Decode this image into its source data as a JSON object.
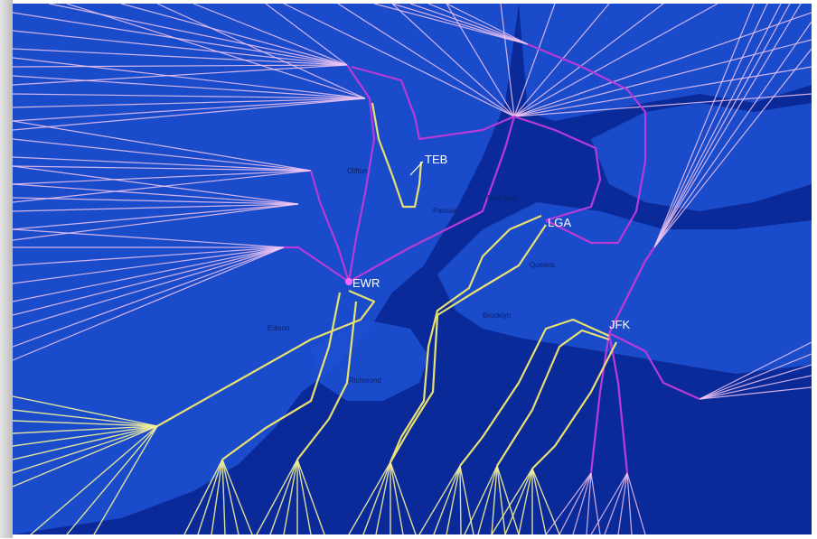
{
  "map": {
    "colors": {
      "water": "#0b2a9a",
      "land": "#1c4fd0",
      "departure_fan": "#f2c6f2",
      "departure_route": "#b93ad8",
      "arrival_route": "#e8e070",
      "arrival_fan": "#f3ef9a"
    },
    "airports": [
      {
        "code": "TEB",
        "label": "TEB"
      },
      {
        "code": "EWR",
        "label": "EWR"
      },
      {
        "code": "LGA",
        "label": "LGA"
      },
      {
        "code": "JFK",
        "label": "JFK"
      }
    ],
    "place_labels": [
      {
        "name": "Clifton",
        "text": "Clifton"
      },
      {
        "name": "Passaic",
        "text": "Passaic"
      },
      {
        "name": "New York",
        "text": "New York"
      },
      {
        "name": "Queens",
        "text": "Queens"
      },
      {
        "name": "Brooklyn",
        "text": "Brooklyn"
      },
      {
        "name": "Elizabeth",
        "text": "Edison"
      },
      {
        "name": "Richmond",
        "text": "Richmond"
      }
    ]
  }
}
